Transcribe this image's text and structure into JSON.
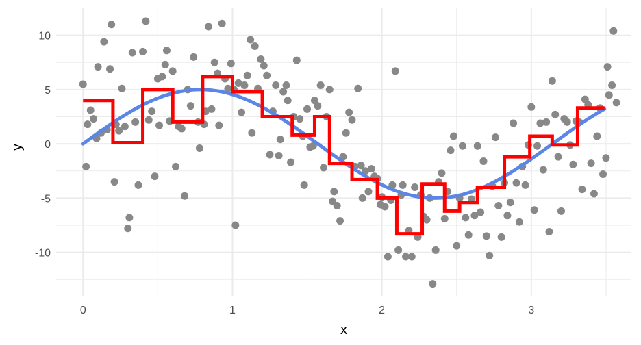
{
  "chart_data": {
    "type": "scatter",
    "xlabel": "x",
    "ylabel": "y",
    "xlim": [
      -0.18,
      3.67
    ],
    "ylim": [
      -14.0,
      12.5
    ],
    "grid": true,
    "legend": "none",
    "x_ticks": [
      0,
      1,
      2,
      3
    ],
    "x_tick_labels": [
      "0",
      "1",
      "2",
      "3"
    ],
    "x_minor_ticks": [
      0.5,
      1.5,
      2.5,
      3.5
    ],
    "y_ticks": [
      -10,
      -5,
      0,
      5,
      10
    ],
    "y_tick_labels": [
      "-10",
      "-5",
      "0",
      "5",
      "10"
    ],
    "y_minor_ticks": [
      -12.5,
      -7.5,
      -2.5,
      2.5,
      7.5
    ],
    "colors": {
      "points": "#888888",
      "smooth_curve": "#5b86e5",
      "step_function": "#ff0000",
      "grid": "#ebebeb",
      "background": "#ffffff"
    },
    "series": [
      {
        "kind": "points",
        "points": [
          [
            0.0,
            5.5
          ],
          [
            0.02,
            -2.1
          ],
          [
            0.03,
            1.8
          ],
          [
            0.05,
            3.1
          ],
          [
            0.07,
            2.3
          ],
          [
            0.09,
            0.5
          ],
          [
            0.1,
            7.1
          ],
          [
            0.12,
            1.0
          ],
          [
            0.14,
            9.4
          ],
          [
            0.16,
            1.3
          ],
          [
            0.18,
            6.9
          ],
          [
            0.19,
            11.0
          ],
          [
            0.21,
            -3.5
          ],
          [
            0.22,
            1.8
          ],
          [
            0.24,
            1.2
          ],
          [
            0.26,
            5.1
          ],
          [
            0.28,
            1.6
          ],
          [
            0.3,
            -7.8
          ],
          [
            0.31,
            -6.8
          ],
          [
            0.33,
            8.4
          ],
          [
            0.35,
            2.0
          ],
          [
            0.37,
            -3.8
          ],
          [
            0.4,
            8.5
          ],
          [
            0.42,
            11.3
          ],
          [
            0.44,
            2.2
          ],
          [
            0.46,
            3.0
          ],
          [
            0.48,
            -3.0
          ],
          [
            0.5,
            6.0
          ],
          [
            0.51,
            1.7
          ],
          [
            0.53,
            6.2
          ],
          [
            0.55,
            7.3
          ],
          [
            0.56,
            8.6
          ],
          [
            0.58,
            2.1
          ],
          [
            0.6,
            6.7
          ],
          [
            0.62,
            -2.1
          ],
          [
            0.64,
            1.6
          ],
          [
            0.66,
            1.4
          ],
          [
            0.68,
            -4.8
          ],
          [
            0.7,
            5.0
          ],
          [
            0.72,
            3.5
          ],
          [
            0.74,
            8.0
          ],
          [
            0.77,
            2.0
          ],
          [
            0.78,
            -0.4
          ],
          [
            0.81,
            1.8
          ],
          [
            0.82,
            3.0
          ],
          [
            0.84,
            10.8
          ],
          [
            0.86,
            3.2
          ],
          [
            0.88,
            7.5
          ],
          [
            0.9,
            6.5
          ],
          [
            0.91,
            1.7
          ],
          [
            0.93,
            11.1
          ],
          [
            0.95,
            6.0
          ],
          [
            0.97,
            5.1
          ],
          [
            0.99,
            7.4
          ],
          [
            1.01,
            5.0
          ],
          [
            1.02,
            -7.5
          ],
          [
            1.04,
            5.6
          ],
          [
            1.06,
            2.9
          ],
          [
            1.08,
            5.4
          ],
          [
            1.1,
            6.3
          ],
          [
            1.12,
            9.6
          ],
          [
            1.13,
            1.0
          ],
          [
            1.15,
            9.0
          ],
          [
            1.17,
            5.1
          ],
          [
            1.19,
            7.8
          ],
          [
            1.21,
            7.2
          ],
          [
            1.23,
            6.3
          ],
          [
            1.25,
            -1.0
          ],
          [
            1.27,
            3.0
          ],
          [
            1.29,
            5.4
          ],
          [
            1.31,
            -1.1
          ],
          [
            1.32,
            0.4
          ],
          [
            1.34,
            4.8
          ],
          [
            1.36,
            5.4
          ],
          [
            1.37,
            4.0
          ],
          [
            1.39,
            -1.7
          ],
          [
            1.41,
            2.5
          ],
          [
            1.43,
            7.7
          ],
          [
            1.45,
            2.3
          ],
          [
            1.47,
            0.7
          ],
          [
            1.48,
            -3.8
          ],
          [
            1.5,
            3.2
          ],
          [
            1.52,
            -0.3
          ],
          [
            1.54,
            -0.2
          ],
          [
            1.55,
            4.0
          ],
          [
            1.57,
            3.5
          ],
          [
            1.59,
            5.4
          ],
          [
            1.61,
            -2.2
          ],
          [
            1.63,
            2.5
          ],
          [
            1.65,
            5.0
          ],
          [
            1.67,
            -5.3
          ],
          [
            1.68,
            -4.4
          ],
          [
            1.7,
            -5.7
          ],
          [
            1.72,
            -7.1
          ],
          [
            1.74,
            -1.2
          ],
          [
            1.76,
            1.0
          ],
          [
            1.78,
            2.9
          ],
          [
            1.8,
            2.2
          ],
          [
            1.82,
            -2.1
          ],
          [
            1.84,
            5.1
          ],
          [
            1.86,
            -2.0
          ],
          [
            1.87,
            -5.0
          ],
          [
            1.89,
            -2.5
          ],
          [
            1.91,
            -4.4
          ],
          [
            1.93,
            -2.3
          ],
          [
            1.95,
            -3.0
          ],
          [
            1.97,
            -3.2
          ],
          [
            1.99,
            -5.6
          ],
          [
            2.0,
            -4.9
          ],
          [
            2.02,
            -5.8
          ],
          [
            2.04,
            -10.4
          ],
          [
            2.06,
            -5.2
          ],
          [
            2.07,
            -3.8
          ],
          [
            2.09,
            6.7
          ],
          [
            2.11,
            -9.8
          ],
          [
            2.13,
            -4.7
          ],
          [
            2.14,
            -3.8
          ],
          [
            2.16,
            -10.4
          ],
          [
            2.18,
            -8.0
          ],
          [
            2.2,
            -10.4
          ],
          [
            2.22,
            -4.0
          ],
          [
            2.24,
            -8.6
          ],
          [
            2.26,
            -4.7
          ],
          [
            2.28,
            -6.7
          ],
          [
            2.3,
            -7.0
          ],
          [
            2.32,
            -5.0
          ],
          [
            2.34,
            -12.9
          ],
          [
            2.36,
            -9.8
          ],
          [
            2.38,
            -3.5
          ],
          [
            2.4,
            -2.7
          ],
          [
            2.42,
            -6.9
          ],
          [
            2.44,
            -4.4
          ],
          [
            2.46,
            -0.6
          ],
          [
            2.48,
            0.7
          ],
          [
            2.5,
            -9.4
          ],
          [
            2.52,
            -5.0
          ],
          [
            2.54,
            -0.2
          ],
          [
            2.56,
            -6.8
          ],
          [
            2.58,
            -8.4
          ],
          [
            2.6,
            -5.1
          ],
          [
            2.62,
            -6.6
          ],
          [
            2.64,
            -0.2
          ],
          [
            2.66,
            -6.3
          ],
          [
            2.68,
            -1.6
          ],
          [
            2.7,
            -8.5
          ],
          [
            2.72,
            -10.3
          ],
          [
            2.74,
            -3.9
          ],
          [
            2.76,
            0.6
          ],
          [
            2.78,
            -5.7
          ],
          [
            2.8,
            -8.6
          ],
          [
            2.82,
            -3.6
          ],
          [
            2.84,
            -6.6
          ],
          [
            2.86,
            -5.4
          ],
          [
            2.88,
            1.9
          ],
          [
            2.9,
            -3.6
          ],
          [
            2.92,
            -7.2
          ],
          [
            2.94,
            -2.1
          ],
          [
            2.96,
            -3.8
          ],
          [
            2.98,
            -0.1
          ],
          [
            3.0,
            3.4
          ],
          [
            3.02,
            -6.1
          ],
          [
            3.04,
            -0.2
          ],
          [
            3.06,
            1.9
          ],
          [
            3.08,
            -2.4
          ],
          [
            3.1,
            2.0
          ],
          [
            3.12,
            -8.1
          ],
          [
            3.14,
            5.8
          ],
          [
            3.16,
            2.7
          ],
          [
            3.18,
            -1.2
          ],
          [
            3.2,
            -6.2
          ],
          [
            3.22,
            2.3
          ],
          [
            3.24,
            2.0
          ],
          [
            3.26,
            -0.1
          ],
          [
            3.28,
            -1.9
          ],
          [
            3.3,
            2.1
          ],
          [
            3.32,
            2.0
          ],
          [
            3.34,
            -4.2
          ],
          [
            3.36,
            4.1
          ],
          [
            3.38,
            3.6
          ],
          [
            3.4,
            -1.8
          ],
          [
            3.42,
            -4.6
          ],
          [
            3.44,
            0.7
          ],
          [
            3.46,
            3.3
          ],
          [
            3.48,
            -2.8
          ],
          [
            3.5,
            -1.3
          ],
          [
            3.51,
            7.1
          ],
          [
            3.52,
            4.5
          ],
          [
            3.54,
            5.4
          ],
          [
            3.55,
            10.4
          ],
          [
            3.57,
            3.8
          ]
        ]
      },
      {
        "kind": "smooth",
        "function": "5*sin(2*x)",
        "x_range": [
          0,
          3.49
        ]
      },
      {
        "kind": "step",
        "steps": [
          [
            0.0,
            0.2,
            4.0
          ],
          [
            0.2,
            0.4,
            0.1
          ],
          [
            0.4,
            0.6,
            5.0
          ],
          [
            0.6,
            0.8,
            2.0
          ],
          [
            0.8,
            1.0,
            6.2
          ],
          [
            1.0,
            1.2,
            4.8
          ],
          [
            1.2,
            1.3,
            2.5
          ],
          [
            1.3,
            1.4,
            2.5
          ],
          [
            1.4,
            1.55,
            0.8
          ],
          [
            1.55,
            1.65,
            2.5
          ],
          [
            1.65,
            1.8,
            -1.8
          ],
          [
            1.8,
            1.9,
            -3.3
          ],
          [
            1.9,
            1.97,
            -3.3
          ],
          [
            1.97,
            2.1,
            -5.0
          ],
          [
            2.1,
            2.27,
            -8.3
          ],
          [
            2.27,
            2.42,
            -3.7
          ],
          [
            2.42,
            2.52,
            -6.2
          ],
          [
            2.52,
            2.64,
            -5.4
          ],
          [
            2.64,
            2.82,
            -4.0
          ],
          [
            2.82,
            2.99,
            -1.2
          ],
          [
            2.99,
            3.14,
            0.7
          ],
          [
            3.14,
            3.31,
            -0.1
          ],
          [
            3.31,
            3.49,
            3.3
          ]
        ]
      }
    ]
  }
}
